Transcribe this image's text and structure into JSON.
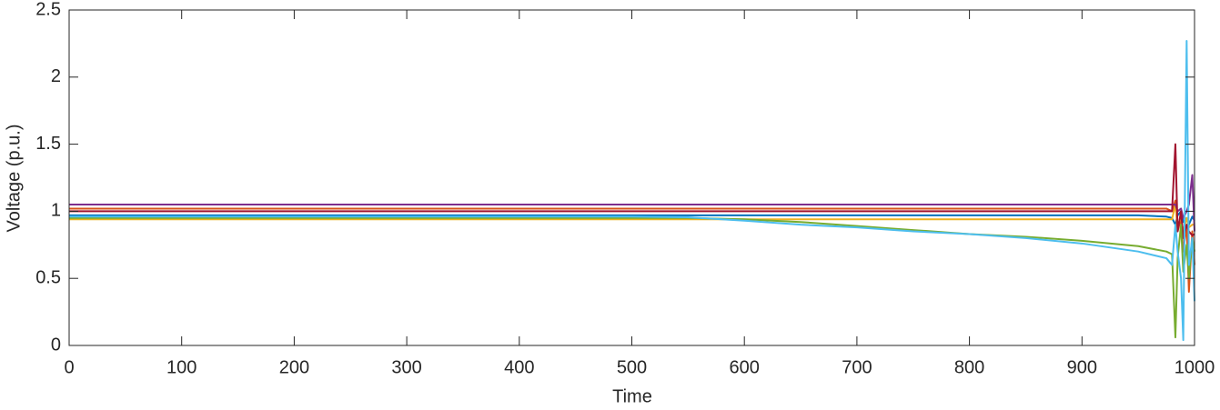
{
  "chart_data": {
    "type": "line",
    "xlabel": "Time",
    "ylabel": "Voltage (p.u.)",
    "x": [
      0,
      100,
      200,
      300,
      400,
      500,
      550,
      600,
      650,
      700,
      750,
      800,
      850,
      900,
      950,
      975,
      980,
      983,
      985,
      988,
      990,
      993,
      995,
      998,
      1000
    ],
    "series": [
      {
        "color": "#0072BD",
        "values": [
          0.97,
          0.97,
          0.97,
          0.97,
          0.97,
          0.97,
          0.97,
          0.97,
          0.97,
          0.97,
          0.97,
          0.97,
          0.97,
          0.97,
          0.97,
          0.96,
          0.95,
          0.9,
          0.97,
          1.0,
          0.92,
          0.95,
          0.9,
          0.96,
          0.93
        ]
      },
      {
        "color": "#D95319",
        "values": [
          1.02,
          1.02,
          1.02,
          1.02,
          1.02,
          1.02,
          1.02,
          1.02,
          1.02,
          1.02,
          1.02,
          1.02,
          1.02,
          1.02,
          1.02,
          1.02,
          1.0,
          1.08,
          0.85,
          0.95,
          0.7,
          0.9,
          0.4,
          0.85,
          0.6
        ]
      },
      {
        "color": "#EDB120",
        "values": [
          0.94,
          0.94,
          0.94,
          0.94,
          0.94,
          0.94,
          0.94,
          0.94,
          0.94,
          0.94,
          0.94,
          0.94,
          0.94,
          0.94,
          0.94,
          0.94,
          0.94,
          1.05,
          0.9,
          0.95,
          0.85,
          0.95,
          0.88,
          0.9,
          0.9
        ]
      },
      {
        "color": "#7E2F8E",
        "values": [
          1.05,
          1.05,
          1.05,
          1.05,
          1.05,
          1.05,
          1.05,
          1.05,
          1.05,
          1.05,
          1.05,
          1.05,
          1.05,
          1.05,
          1.05,
          1.05,
          1.05,
          1.05,
          1.0,
          1.02,
          0.95,
          1.0,
          1.05,
          1.27,
          0.85
        ]
      },
      {
        "color": "#A2142F",
        "values": [
          1.0,
          1.0,
          1.0,
          1.0,
          1.0,
          1.0,
          1.0,
          1.0,
          1.0,
          1.0,
          1.0,
          1.0,
          1.0,
          1.0,
          1.0,
          1.0,
          1.0,
          1.5,
          0.85,
          1.0,
          0.8,
          0.9,
          0.85,
          0.82,
          0.83
        ]
      },
      {
        "color": "#77AC30",
        "values": [
          0.95,
          0.95,
          0.95,
          0.95,
          0.95,
          0.95,
          0.95,
          0.94,
          0.92,
          0.89,
          0.86,
          0.83,
          0.81,
          0.78,
          0.74,
          0.7,
          0.68,
          0.06,
          0.65,
          0.9,
          0.55,
          0.75,
          0.5,
          0.8,
          0.7
        ]
      },
      {
        "color": "#4DBEEE",
        "values": [
          0.96,
          0.96,
          0.96,
          0.96,
          0.96,
          0.96,
          0.955,
          0.93,
          0.9,
          0.88,
          0.85,
          0.83,
          0.8,
          0.76,
          0.7,
          0.65,
          0.6,
          0.9,
          0.7,
          0.5,
          0.04,
          2.27,
          0.6,
          0.8,
          0.33
        ]
      }
    ],
    "xlim": [
      0,
      1000
    ],
    "xticks": [
      0,
      100,
      200,
      300,
      400,
      500,
      600,
      700,
      800,
      900,
      1000
    ],
    "ylim": [
      0,
      2.5
    ],
    "yticks": [
      0,
      0.5,
      1,
      1.5,
      2,
      2.5
    ]
  }
}
